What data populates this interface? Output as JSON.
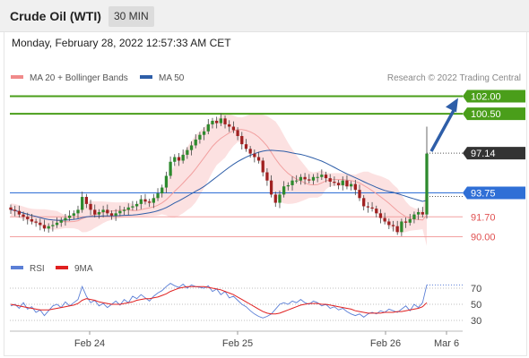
{
  "header": {
    "title": "Crude Oil (WTI)",
    "timeframe": "30 MIN"
  },
  "timestamp": "Monday, February 28, 2022 12:57:33 AM CET",
  "legend": {
    "items": [
      {
        "label": "MA 20 + Bollinger Bands",
        "color": "#f08a8a"
      },
      {
        "label": "MA 50",
        "color": "#2e5ea8"
      }
    ],
    "credit": "Research © 2022 Trading Central"
  },
  "rsi_legend": {
    "items": [
      {
        "label": "RSI",
        "color": "#5b7fd6"
      },
      {
        "label": "9MA",
        "color": "#e02020"
      }
    ]
  },
  "colors": {
    "resistance": "#4a9e1a",
    "pivot": "#2f6fd6",
    "support": "#f2a0a0",
    "last": "#333333",
    "candle_up": "#2d8a2d",
    "candle_down": "#a02020",
    "arrow": "#2e5ea8"
  },
  "chart_data": [
    {
      "type": "candlestick",
      "title": "Crude Oil (WTI)",
      "x_ticks": [
        "Feb 24",
        "Feb 25",
        "Feb 26",
        "Mar 6"
      ],
      "ylim": [
        88.6,
        103.7
      ],
      "levels": [
        {
          "value": 102.0,
          "label": "102.00",
          "kind": "resistance"
        },
        {
          "value": 100.5,
          "label": "100.50",
          "kind": "resistance"
        },
        {
          "value": 97.14,
          "label": "97.14",
          "kind": "last"
        },
        {
          "value": 93.75,
          "label": "93.75",
          "kind": "pivot"
        },
        {
          "value": 91.7,
          "label": "91.70",
          "kind": "support"
        },
        {
          "value": 90.0,
          "label": "90.00",
          "kind": "support"
        }
      ],
      "arrow": {
        "from": 97.14,
        "to": 102.0
      },
      "close_path": [
        92.3,
        92.2,
        91.9,
        91.7,
        91.5,
        91.3,
        91.2,
        91.0,
        90.7,
        90.9,
        91.0,
        91.2,
        91.4,
        91.6,
        91.8,
        92.0,
        92.3,
        93.4,
        92.8,
        92.3,
        91.9,
        92.1,
        92.3,
        92.0,
        91.8,
        92.0,
        92.2,
        92.3,
        92.5,
        92.6,
        92.8,
        93.2,
        93.0,
        92.9,
        93.3,
        93.7,
        94.2,
        95.2,
        96.4,
        96.8,
        96.5,
        97.0,
        97.4,
        97.8,
        98.3,
        98.7,
        99.0,
        99.6,
        99.9,
        99.7,
        100.1,
        99.6,
        99.4,
        99.1,
        98.6,
        97.9,
        97.5,
        97.1,
        96.8,
        96.5,
        95.5,
        94.8,
        93.6,
        92.9,
        93.6,
        94.3,
        94.4,
        94.8,
        94.8,
        95.1,
        94.9,
        94.8,
        95.1,
        95.1,
        95.3,
        95.0,
        94.7,
        94.6,
        94.4,
        94.8,
        94.3,
        94.5,
        94.0,
        93.3,
        92.6,
        92.5,
        92.4,
        92.0,
        91.6,
        91.3,
        91.0,
        90.9,
        90.4,
        91.3,
        91.2,
        91.5,
        91.9,
        92.1,
        91.9,
        97.1
      ],
      "series": [
        {
          "name": "MA 20 + Bollinger Bands"
        },
        {
          "name": "MA 50"
        }
      ]
    },
    {
      "type": "line",
      "title": "RSI",
      "y_ticks": [
        "70",
        "50",
        "30"
      ],
      "ylim": [
        17,
        90
      ],
      "series": [
        {
          "name": "RSI",
          "values": [
            48,
            50,
            45,
            52,
            44,
            47,
            40,
            43,
            36,
            42,
            48,
            50,
            46,
            53,
            48,
            52,
            56,
            72,
            60,
            52,
            55,
            48,
            51,
            46,
            50,
            54,
            49,
            56,
            52,
            60,
            57,
            62,
            58,
            54,
            60,
            64,
            67,
            72,
            76,
            73,
            71,
            75,
            70,
            74,
            72,
            71,
            70,
            73,
            66,
            69,
            62,
            66,
            58,
            60,
            55,
            50,
            47,
            42,
            38,
            35,
            33,
            35,
            38,
            44,
            50,
            52,
            50,
            54,
            52,
            56,
            52,
            50,
            54,
            52,
            48,
            50,
            45,
            47,
            43,
            45,
            41,
            38,
            36,
            38,
            34,
            38,
            40,
            38,
            42,
            40,
            44,
            42,
            40,
            44,
            48,
            42,
            50,
            46,
            52,
            74
          ]
        },
        {
          "name": "9MA",
          "values": [
            50,
            49,
            48,
            47,
            46,
            45,
            44,
            43,
            43,
            43,
            44,
            45,
            46,
            47,
            48,
            49,
            51,
            55,
            57,
            56,
            55,
            53,
            52,
            51,
            50,
            50,
            50,
            51,
            52,
            53,
            55,
            56,
            57,
            57,
            58,
            59,
            61,
            63,
            66,
            68,
            70,
            71,
            72,
            72,
            72,
            72,
            72,
            71,
            70,
            69,
            68,
            66,
            64,
            62,
            59,
            56,
            53,
            50,
            47,
            44,
            41,
            39,
            38,
            38,
            39,
            41,
            43,
            45,
            47,
            49,
            50,
            51,
            51,
            51,
            50,
            50,
            49,
            48,
            47,
            46,
            45,
            44,
            42,
            41,
            40,
            39,
            39,
            39,
            39,
            40,
            40,
            40,
            41,
            41,
            42,
            43,
            44,
            45,
            47,
            52
          ]
        }
      ]
    }
  ]
}
